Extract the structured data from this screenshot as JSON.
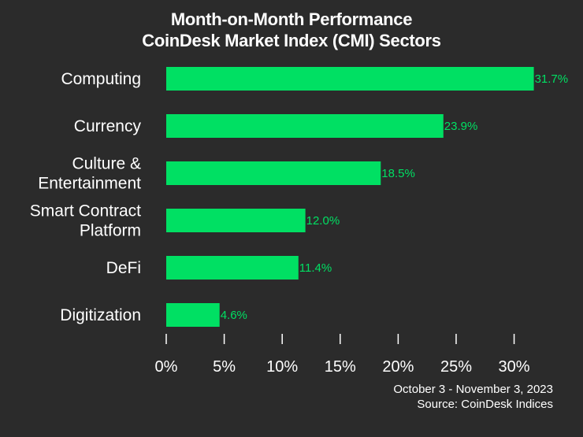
{
  "colors": {
    "background": "#2b2b2b",
    "bar": "#00e063",
    "value_label": "#00e063",
    "text": "#ffffff"
  },
  "chart_data": {
    "type": "bar",
    "orientation": "horizontal",
    "title": [
      "Month-on-Month Performance",
      "CoinDesk Market Index (CMI) Sectors"
    ],
    "categories": [
      [
        "Computing"
      ],
      [
        "Currency"
      ],
      [
        "Culture &",
        "Entertainment"
      ],
      [
        "Smart Contract",
        "Platform"
      ],
      [
        "DeFi"
      ],
      [
        "Digitization"
      ]
    ],
    "values": [
      31.7,
      23.9,
      18.5,
      12.0,
      11.4,
      4.6
    ],
    "value_labels": [
      "31.7%",
      "23.9%",
      "18.5%",
      "12.0%",
      "11.4%",
      "4.6%"
    ],
    "xlim": [
      0,
      32
    ],
    "x_ticks": [
      0,
      5,
      10,
      15,
      20,
      25,
      30
    ],
    "x_tick_labels": [
      "0%",
      "5%",
      "10%",
      "15%",
      "20%",
      "25%",
      "30%"
    ],
    "xlabel": "",
    "ylabel": "",
    "grid": false
  },
  "footer": {
    "date_range": "October 3 - November 3, 2023",
    "source": "Source: CoinDesk Indices"
  }
}
